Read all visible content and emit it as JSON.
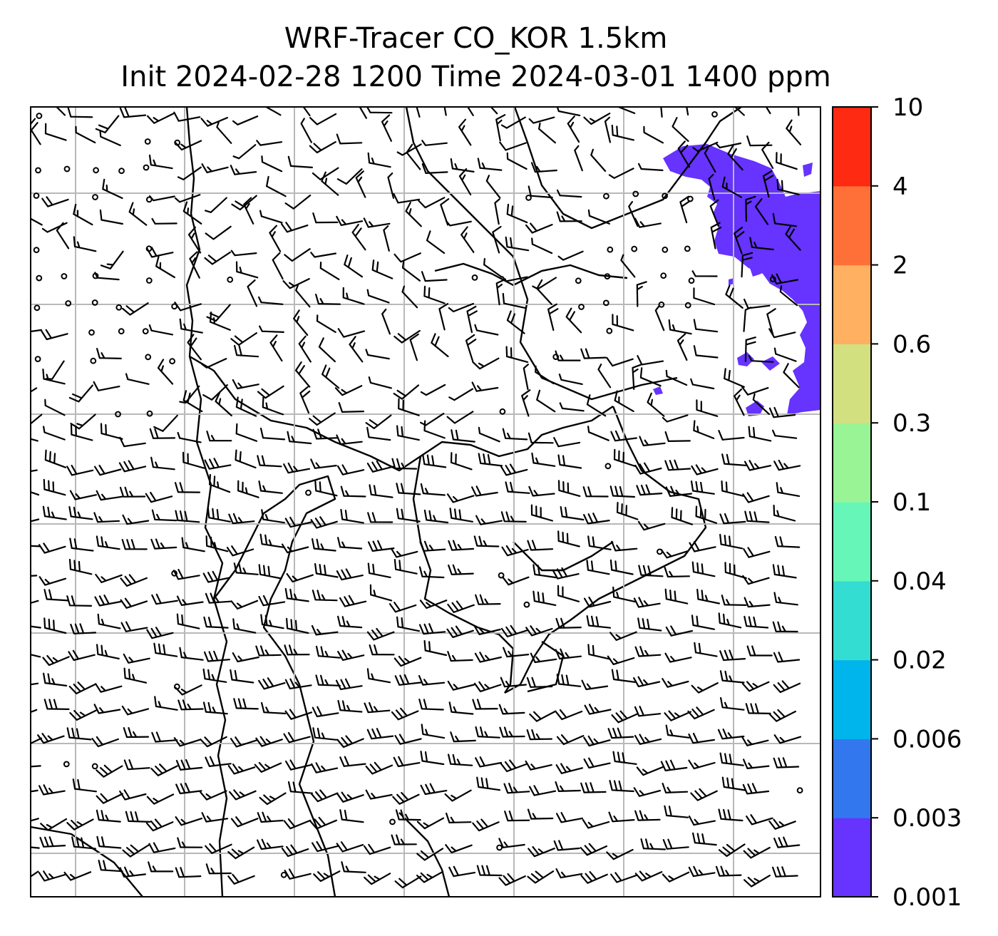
{
  "title": {
    "line1": "WRF-Tracer CO_KOR 1.5km",
    "line2": "Init 2024-02-28 1200 Time 2024-03-01 1400 ppm"
  },
  "colorbar": {
    "ticks": [
      "0.001",
      "0.003",
      "0.006",
      "0.02",
      "0.04",
      "0.1",
      "0.3",
      "0.6",
      "2",
      "4",
      "10"
    ],
    "colors": [
      "#6633ff",
      "#3377ee",
      "#00b4ec",
      "#33ddd2",
      "#66f7b8",
      "#99f496",
      "#d2e080",
      "#ffb060",
      "#ff7038",
      "#ff2a12"
    ]
  },
  "map": {
    "grid": true,
    "wind_barbs": true,
    "tracer_color": "#6633ff"
  }
}
